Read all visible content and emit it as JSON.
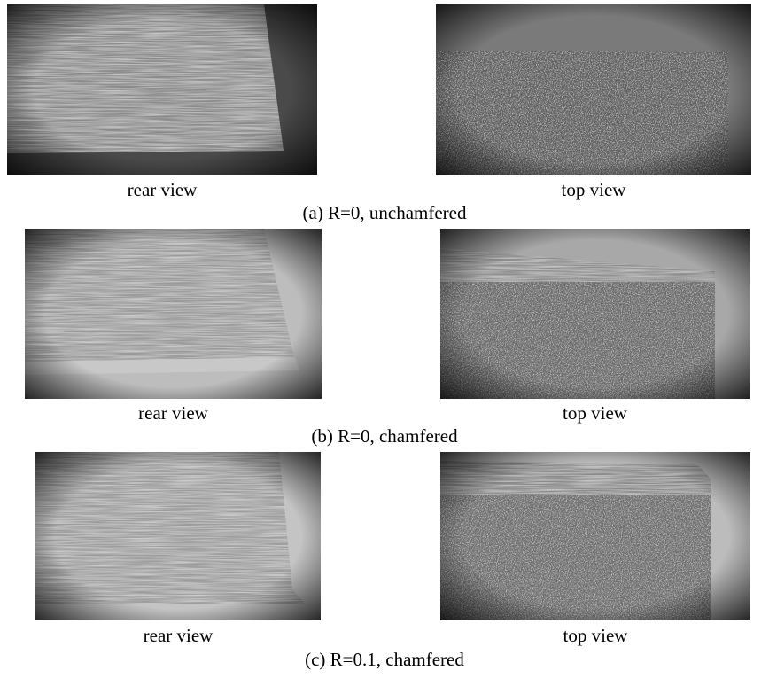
{
  "figure": {
    "panels": [
      {
        "caption": "(a) R=0, unchamfered",
        "images": [
          {
            "label": "rear view"
          },
          {
            "label": "top view"
          }
        ]
      },
      {
        "caption": "(b) R=0, chamfered",
        "images": [
          {
            "label": "rear view"
          },
          {
            "label": "top view"
          }
        ]
      },
      {
        "caption": "(c) R=0.1, chamfered",
        "images": [
          {
            "label": "rear view"
          },
          {
            "label": "top view"
          }
        ]
      }
    ]
  }
}
